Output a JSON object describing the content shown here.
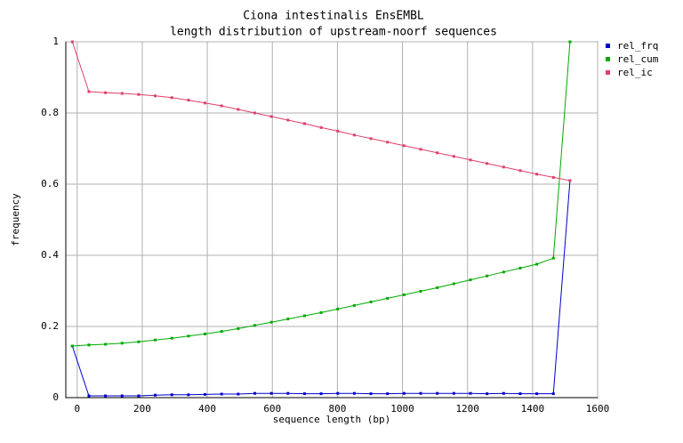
{
  "chart_data": {
    "type": "line",
    "title": "Ciona intestinalis EnsEMBL",
    "subtitle": "length distribution of upstream-noorf sequences",
    "x_label": "sequence length (bp)",
    "y_label": "frequency",
    "x": [
      -15,
      36,
      87,
      138,
      189,
      240,
      291,
      342,
      393,
      444,
      495,
      546,
      597,
      648,
      699,
      750,
      801,
      852,
      903,
      954,
      1005,
      1056,
      1107,
      1158,
      1209,
      1260,
      1311,
      1362,
      1413,
      1464,
      1515
    ],
    "series": [
      {
        "name": "rel_frq",
        "color": "#0000cc",
        "values": [
          0.145,
          0.005,
          0.005,
          0.005,
          0.005,
          0.007,
          0.008,
          0.008,
          0.009,
          0.01,
          0.01,
          0.012,
          0.012,
          0.012,
          0.011,
          0.011,
          0.012,
          0.012,
          0.011,
          0.011,
          0.012,
          0.012,
          0.012,
          0.012,
          0.012,
          0.011,
          0.012,
          0.011,
          0.011,
          0.011,
          0.61
        ]
      },
      {
        "name": "rel_cum",
        "color": "#00aa00",
        "values": [
          0.145,
          0.148,
          0.15,
          0.153,
          0.157,
          0.162,
          0.167,
          0.173,
          0.179,
          0.186,
          0.194,
          0.203,
          0.212,
          0.221,
          0.23,
          0.239,
          0.249,
          0.259,
          0.269,
          0.279,
          0.289,
          0.299,
          0.309,
          0.32,
          0.331,
          0.342,
          0.353,
          0.364,
          0.375,
          0.392,
          1.0
        ]
      },
      {
        "name": "rel_ic",
        "color": "#e0406a",
        "values": [
          1.0,
          0.86,
          0.857,
          0.855,
          0.852,
          0.848,
          0.843,
          0.836,
          0.828,
          0.82,
          0.81,
          0.8,
          0.79,
          0.78,
          0.77,
          0.759,
          0.749,
          0.738,
          0.728,
          0.718,
          0.708,
          0.698,
          0.688,
          0.678,
          0.668,
          0.658,
          0.648,
          0.638,
          0.628,
          0.619,
          0.61
        ]
      }
    ],
    "xlim": [
      -35,
      1600
    ],
    "ylim": [
      0,
      1
    ],
    "xticks": [
      0,
      200,
      400,
      600,
      800,
      1000,
      1200,
      1400,
      1600
    ],
    "yticks": [
      0,
      0.2,
      0.4,
      0.6,
      0.8,
      1
    ],
    "grid": true,
    "legend": "right"
  }
}
